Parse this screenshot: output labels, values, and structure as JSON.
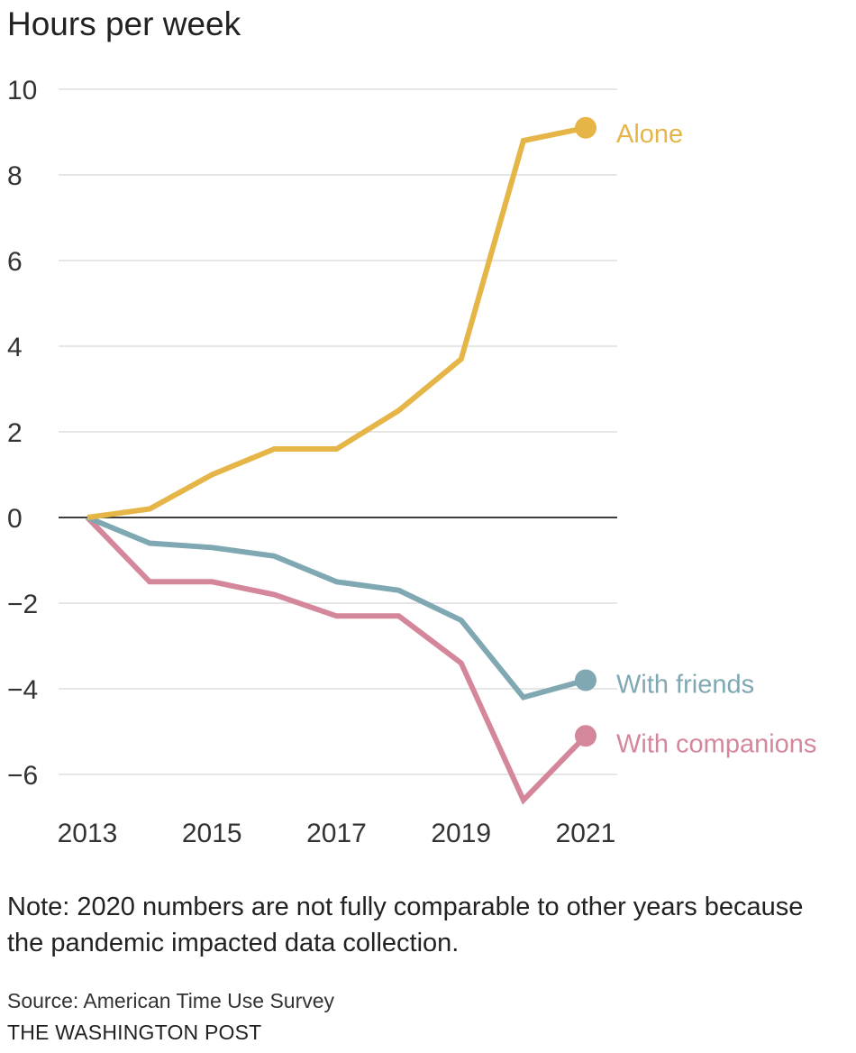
{
  "chart_data": {
    "type": "line",
    "title": "Hours per week",
    "x": [
      2013,
      2014,
      2015,
      2016,
      2017,
      2018,
      2019,
      2020,
      2021
    ],
    "x_ticks": [
      "2013",
      "2015",
      "2017",
      "2019",
      "2021"
    ],
    "y_ticks": [
      "10",
      "8",
      "6",
      "4",
      "2",
      "0",
      "−2",
      "−4",
      "−6"
    ],
    "y_tick_values": [
      10,
      8,
      6,
      4,
      2,
      0,
      -2,
      -4,
      -6
    ],
    "ylim": [
      -6.8,
      10
    ],
    "xlim": [
      2013,
      2021
    ],
    "grid": true,
    "series": [
      {
        "name": "Alone",
        "color": "#e5b547",
        "values": [
          0,
          0.2,
          1.0,
          1.6,
          1.6,
          2.5,
          3.7,
          8.8,
          9.1
        ]
      },
      {
        "name": "With friends",
        "color": "#7fa8b3",
        "values": [
          0,
          -0.6,
          -0.7,
          -0.9,
          -1.5,
          -1.7,
          -2.4,
          -4.2,
          -3.8
        ]
      },
      {
        "name": "With companions",
        "color": "#d4879b",
        "values": [
          0,
          -1.5,
          -1.5,
          -1.8,
          -2.3,
          -2.3,
          -3.4,
          -6.6,
          -5.1
        ]
      }
    ]
  },
  "note": "Note: 2020 numbers are not fully comparable to other years because the pandemic impacted data collection.",
  "source": "Source: American Time Use Survey",
  "publisher": "THE WASHINGTON POST"
}
